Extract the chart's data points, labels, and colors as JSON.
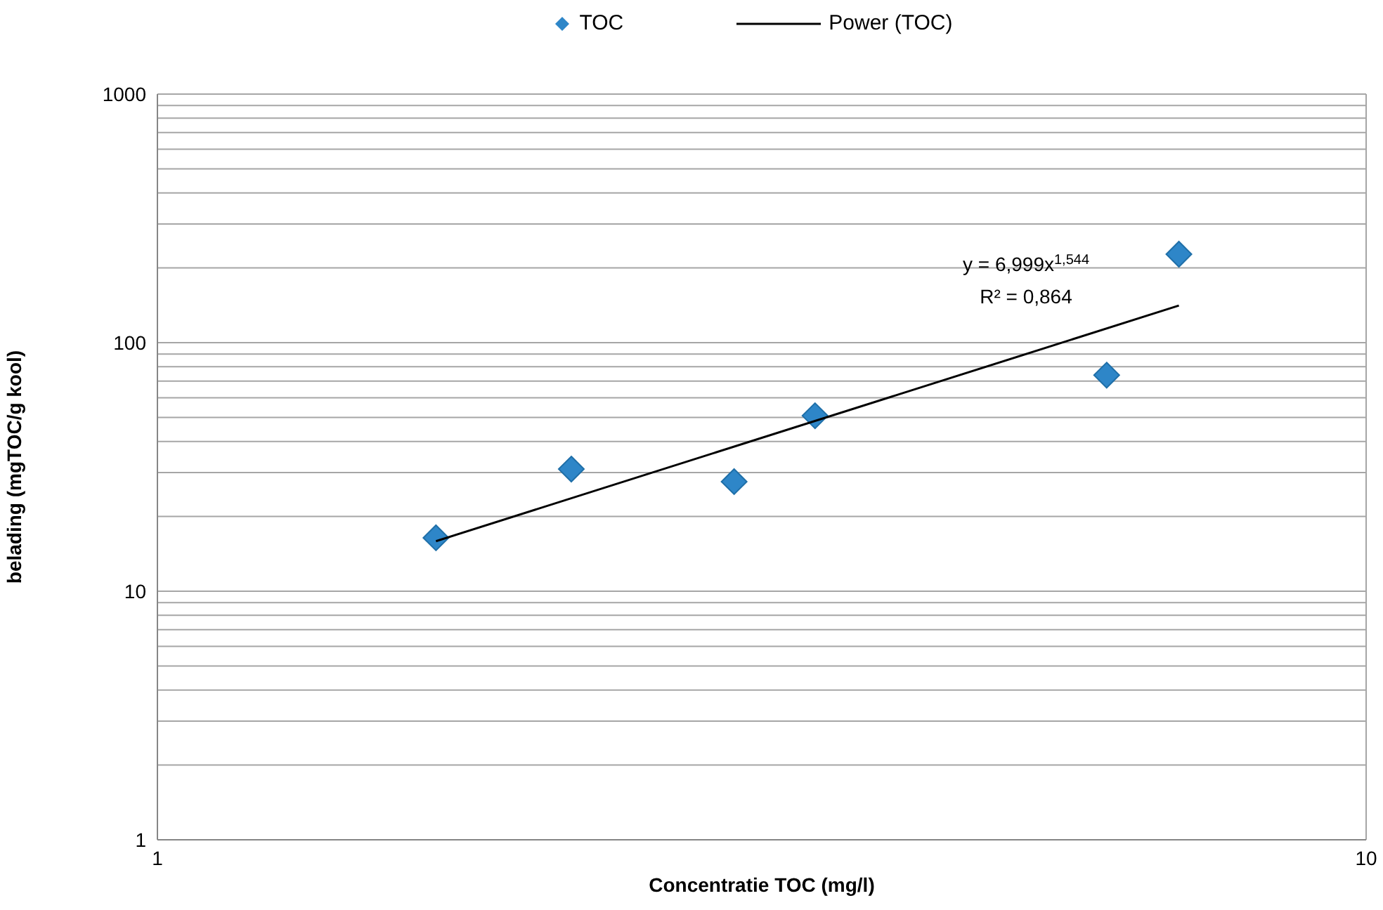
{
  "chart_data": {
    "type": "scatter",
    "xlabel": "Concentratie TOC (mg/l)",
    "ylabel": "belading (mgTOC/g kool)",
    "log": "xy",
    "grid": true,
    "legend": "top",
    "marker": "diamond",
    "xlim": [
      1,
      10
    ],
    "xticks": [
      1,
      10
    ],
    "ylim": [
      1,
      1000
    ],
    "yticks": [
      1,
      {
        "value": 2,
        "label": null
      },
      {
        "value": 3,
        "label": null
      },
      {
        "value": 4,
        "label": null
      },
      {
        "value": 5,
        "label": null
      },
      {
        "value": 6,
        "label": null
      },
      {
        "value": 7,
        "label": null
      },
      {
        "value": 8,
        "label": null
      },
      {
        "value": 9,
        "label": null
      },
      10,
      {
        "value": 20,
        "label": null
      },
      {
        "value": 30,
        "label": null
      },
      {
        "value": 40,
        "label": null
      },
      {
        "value": 50,
        "label": null
      },
      {
        "value": 60,
        "label": null
      },
      {
        "value": 70,
        "label": null
      },
      {
        "value": 80,
        "label": null
      },
      {
        "value": 90,
        "label": null
      },
      100,
      {
        "value": 200,
        "label": null
      },
      {
        "value": 300,
        "label": null
      },
      {
        "value": 400,
        "label": null
      },
      {
        "value": 500,
        "label": null
      },
      {
        "value": 600,
        "label": null
      },
      {
        "value": 700,
        "label": null
      },
      {
        "value": 800,
        "label": null
      },
      {
        "value": 900,
        "label": null
      },
      1000
    ],
    "series": [
      {
        "name": "TOC",
        "type": "scatter",
        "color": "#2e86c8",
        "x": [
          1.7,
          2.2,
          3.0,
          3.5,
          6.1,
          7.0
        ],
        "values": [
          16.4,
          31,
          27.6,
          50.8,
          74,
          227
        ]
      },
      {
        "name": "Power (TOC)",
        "type": "line",
        "color": "#000000",
        "marker": "none",
        "x": [
          1.7,
          7.0
        ],
        "values": [
          15.9,
          141
        ]
      }
    ],
    "annotations": [
      "y = 6,999x$^{1,544}$",
      "R² = 0,864"
    ]
  }
}
